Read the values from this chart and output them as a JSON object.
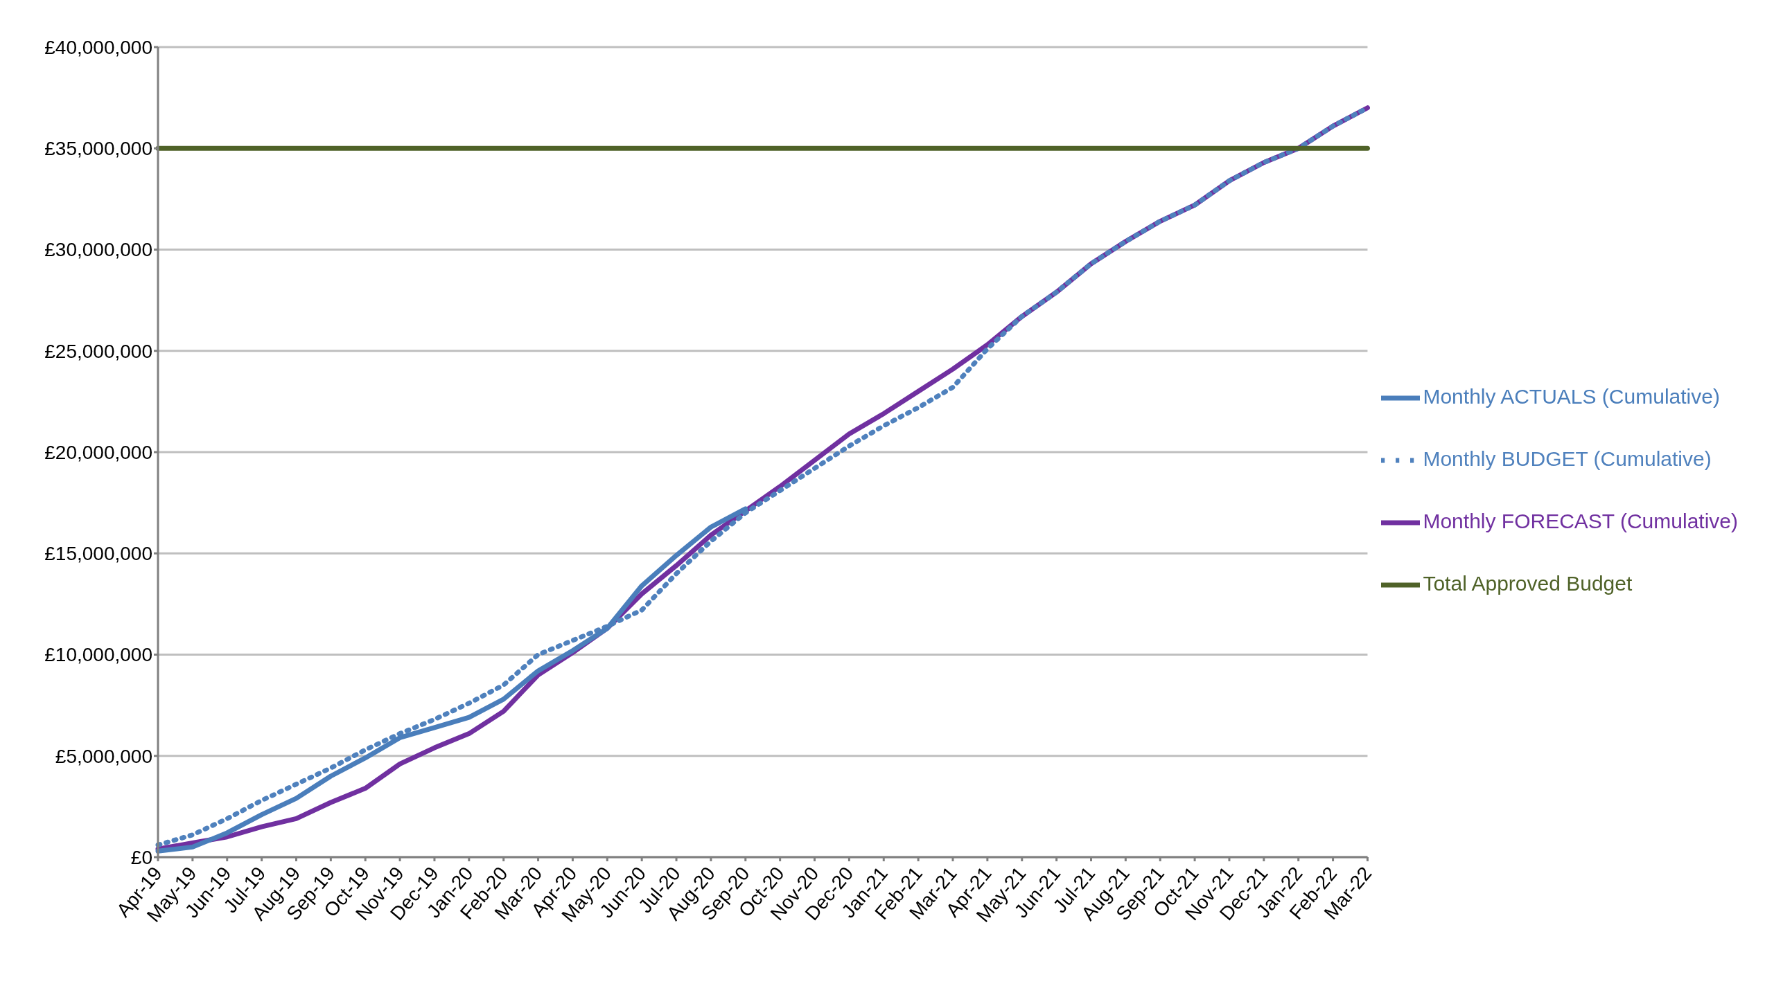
{
  "chart_data": {
    "type": "line",
    "categories": [
      "Apr-19",
      "May-19",
      "Jun-19",
      "Jul-19",
      "Aug-19",
      "Sep-19",
      "Oct-19",
      "Nov-19",
      "Dec-19",
      "Jan-20",
      "Feb-20",
      "Mar-20",
      "Apr-20",
      "May-20",
      "Jun-20",
      "Jul-20",
      "Aug-20",
      "Sep-20",
      "Oct-20",
      "Nov-20",
      "Dec-20",
      "Jan-21",
      "Feb-21",
      "Mar-21",
      "Apr-21",
      "May-21",
      "Jun-21",
      "Jul-21",
      "Aug-21",
      "Sep-21",
      "Oct-21",
      "Nov-21",
      "Dec-21",
      "Jan-22",
      "Feb-22",
      "Mar-22"
    ],
    "series": [
      {
        "name": "Monthly FORECAST (Cumulative)",
        "color": "#7030a0",
        "line_style": "solid",
        "values": [
          400000,
          700000,
          1000000,
          1500000,
          1900000,
          2700000,
          3400000,
          4600000,
          5400000,
          6100000,
          7200000,
          9000000,
          10100000,
          11300000,
          13000000,
          14400000,
          15900000,
          17100000,
          18300000,
          19600000,
          20900000,
          21900000,
          23000000,
          24100000,
          25300000,
          26700000,
          27900000,
          29300000,
          30400000,
          31400000,
          32200000,
          33400000,
          34300000,
          35000000,
          36100000,
          37000000
        ]
      },
      {
        "name": "Monthly BUDGET (Cumulative)",
        "color": "#4f81bd",
        "line_style": "dotted",
        "values": [
          600000,
          1100000,
          1900000,
          2800000,
          3600000,
          4400000,
          5300000,
          6100000,
          6800000,
          7600000,
          8500000,
          10000000,
          10700000,
          11400000,
          12200000,
          14000000,
          15600000,
          17000000,
          18100000,
          19200000,
          20300000,
          21300000,
          22200000,
          23200000,
          25100000,
          26700000,
          27900000,
          29300000,
          30400000,
          31400000,
          32200000,
          33400000,
          34300000,
          35000000,
          36100000,
          37000000
        ]
      },
      {
        "name": "Monthly ACTUALS (Cumulative)",
        "color": "#4a7ebb",
        "line_style": "solid",
        "values": [
          300000,
          500000,
          1200000,
          2100000,
          2900000,
          4000000,
          4900000,
          5900000,
          6400000,
          6900000,
          7800000,
          9200000,
          10200000,
          11300000,
          13400000,
          14900000,
          16300000,
          17200000,
          null,
          null,
          null,
          null,
          null,
          null,
          null,
          null,
          null,
          null,
          null,
          null,
          null,
          null,
          null,
          null,
          null,
          null
        ]
      },
      {
        "name": "Total Approved Budget",
        "color": "#4f6228",
        "line_style": "solid",
        "values": [
          35000000,
          35000000,
          35000000,
          35000000,
          35000000,
          35000000,
          35000000,
          35000000,
          35000000,
          35000000,
          35000000,
          35000000,
          35000000,
          35000000,
          35000000,
          35000000,
          35000000,
          35000000,
          35000000,
          35000000,
          35000000,
          35000000,
          35000000,
          35000000,
          35000000,
          35000000,
          35000000,
          35000000,
          35000000,
          35000000,
          35000000,
          35000000,
          35000000,
          35000000,
          35000000,
          35000000
        ]
      }
    ],
    "ylim": [
      0,
      40000000
    ],
    "yticks": [
      {
        "value": 0,
        "label": "£0"
      },
      {
        "value": 5000000,
        "label": "£5,000,000"
      },
      {
        "value": 10000000,
        "label": "£10,000,000"
      },
      {
        "value": 15000000,
        "label": "£15,000,000"
      },
      {
        "value": 20000000,
        "label": "£20,000,000"
      },
      {
        "value": 25000000,
        "label": "£25,000,000"
      },
      {
        "value": 30000000,
        "label": "£30,000,000"
      },
      {
        "value": 35000000,
        "label": "£35,000,000"
      },
      {
        "value": 40000000,
        "label": "£40,000,000"
      }
    ],
    "grid": "y",
    "legend": "right",
    "marker": "none"
  }
}
